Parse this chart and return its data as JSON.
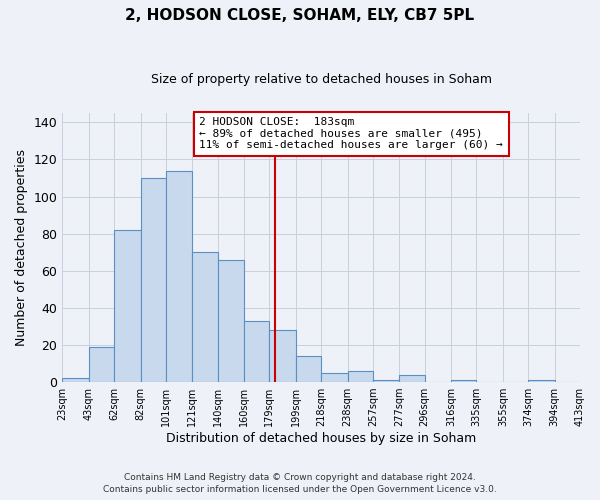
{
  "title": "2, HODSON CLOSE, SOHAM, ELY, CB7 5PL",
  "subtitle": "Size of property relative to detached houses in Soham",
  "xlabel": "Distribution of detached houses by size in Soham",
  "ylabel": "Number of detached properties",
  "bar_edges": [
    23,
    43,
    62,
    82,
    101,
    121,
    140,
    160,
    179,
    199,
    218,
    238,
    257,
    277,
    296,
    316,
    335,
    355,
    374,
    394,
    413
  ],
  "bar_heights": [
    2,
    19,
    82,
    110,
    114,
    70,
    66,
    33,
    28,
    14,
    5,
    6,
    1,
    4,
    0,
    1,
    0,
    0,
    1,
    0
  ],
  "tick_labels": [
    "23sqm",
    "43sqm",
    "62sqm",
    "82sqm",
    "101sqm",
    "121sqm",
    "140sqm",
    "160sqm",
    "179sqm",
    "199sqm",
    "218sqm",
    "238sqm",
    "257sqm",
    "277sqm",
    "296sqm",
    "316sqm",
    "335sqm",
    "355sqm",
    "374sqm",
    "394sqm",
    "413sqm"
  ],
  "bar_color": "#c8d9ee",
  "bar_edge_color": "#5a8fc2",
  "property_line_x": 183,
  "property_line_color": "#cc0000",
  "annotation_line1": "2 HODSON CLOSE:  183sqm",
  "annotation_line2": "← 89% of detached houses are smaller (495)",
  "annotation_line3": "11% of semi-detached houses are larger (60) →",
  "annotation_box_color": "#cc0000",
  "ylim": [
    0,
    145
  ],
  "yticks": [
    0,
    20,
    40,
    60,
    80,
    100,
    120,
    140
  ],
  "footer_line1": "Contains HM Land Registry data © Crown copyright and database right 2024.",
  "footer_line2": "Contains public sector information licensed under the Open Government Licence v3.0.",
  "background_color": "#eef2f8",
  "grid_color": "#c8d0dc"
}
